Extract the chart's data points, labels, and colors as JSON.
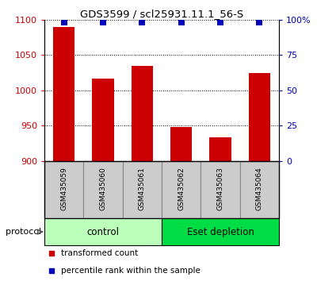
{
  "title": "GDS3599 / scl25931.11.1_56-S",
  "samples": [
    "GSM435059",
    "GSM435060",
    "GSM435061",
    "GSM435062",
    "GSM435063",
    "GSM435064"
  ],
  "transformed_counts": [
    1090,
    1017,
    1035,
    948,
    934,
    1025
  ],
  "percentile_ranks": [
    98,
    98,
    98,
    98,
    98,
    98
  ],
  "ylim_left": [
    900,
    1100
  ],
  "ylim_right": [
    0,
    100
  ],
  "yticks_left": [
    900,
    950,
    1000,
    1050,
    1100
  ],
  "yticks_right": [
    0,
    25,
    50,
    75,
    100
  ],
  "ytick_labels_right": [
    "0",
    "25",
    "50",
    "75",
    "100%"
  ],
  "bar_color": "#cc0000",
  "dot_color": "#0000bb",
  "groups": [
    {
      "label": "control",
      "start": 0,
      "end": 3,
      "color": "#bbffbb"
    },
    {
      "label": "Eset depletion",
      "start": 3,
      "end": 6,
      "color": "#00dd44"
    }
  ],
  "protocol_label": "protocol",
  "legend_items": [
    {
      "color": "#cc0000",
      "label": "transformed count"
    },
    {
      "color": "#0000bb",
      "label": "percentile rank within the sample"
    }
  ],
  "background_color": "#ffffff",
  "tick_label_color_left": "#cc0000",
  "tick_label_color_right": "#0000bb",
  "grid_color": "#000000",
  "bar_width": 0.55,
  "dot_size": 40,
  "dot_marker": "s",
  "sample_box_color": "#cccccc",
  "sample_box_edge": "#888888"
}
